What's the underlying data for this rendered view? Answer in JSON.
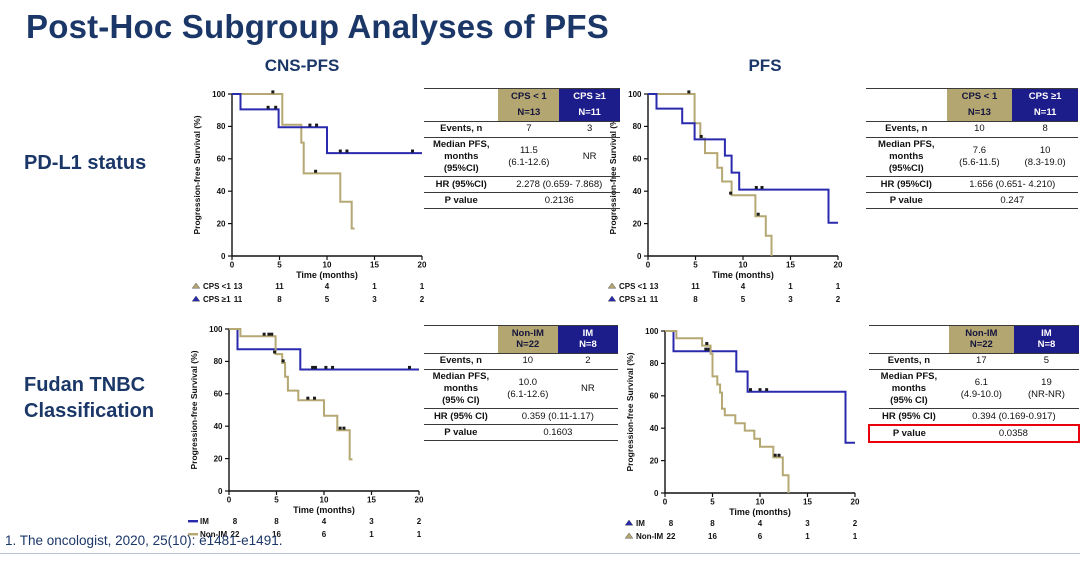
{
  "slide": {
    "title": "Post-Hoc Subgroup Analyses of PFS",
    "column_headers": [
      "CNS-PFS",
      "PFS"
    ],
    "row_labels": [
      "PD-L1 status",
      "Fudan TNBC Classification"
    ],
    "footer": "1. The oncologist, 2020, 25(10): e1481-e1491."
  },
  "colors": {
    "navy_text": "#1b3768",
    "navy_line": "#2a2aae",
    "tan_line": "#b5a873",
    "navy_header_bg": "#1c1c8a",
    "tan_header_bg": "#b3a671",
    "highlight_red": "#e8000d",
    "censor_mark": "#1a1a1a"
  },
  "chart_data": [
    {
      "type": "line",
      "group": "PD-L1 status",
      "endpoint": "CNS-PFS",
      "xlabel": "Time (months)",
      "ylabel": "Progression-free Survival (%)",
      "xlim": [
        0,
        20
      ],
      "ylim": [
        0,
        100
      ],
      "xticks": [
        0,
        5,
        10,
        15,
        20
      ],
      "yticks": [
        0,
        20,
        40,
        60,
        80,
        100
      ],
      "series": [
        {
          "name": "CPS <1",
          "color": "#b5a873",
          "marker": "triangle",
          "steps": [
            [
              0,
              100
            ],
            [
              5.3,
              100
            ],
            [
              5.3,
              81
            ],
            [
              7.3,
              81
            ],
            [
              7.3,
              70
            ],
            [
              7.55,
              70
            ],
            [
              7.55,
              51
            ],
            [
              11.4,
              51
            ],
            [
              11.4,
              33.5
            ],
            [
              12.6,
              33.5
            ],
            [
              12.6,
              17
            ],
            [
              12.9,
              17
            ]
          ],
          "censors": [
            [
              4.3,
              100
            ],
            [
              8.8,
              51
            ]
          ],
          "at_risk": [
            13,
            11,
            4,
            1,
            1
          ]
        },
        {
          "name": "CPS ≥1",
          "color": "#2a2aae",
          "marker": "triangle",
          "steps": [
            [
              0,
              100
            ],
            [
              0.9,
              100
            ],
            [
              0.9,
              90.5
            ],
            [
              4.9,
              90.5
            ],
            [
              4.9,
              79.5
            ],
            [
              10,
              79.5
            ],
            [
              10,
              63.5
            ],
            [
              20,
              63.5
            ]
          ],
          "censors": [
            [
              3.8,
              90.5
            ],
            [
              4.6,
              90.5
            ],
            [
              8.2,
              79.5
            ],
            [
              8.9,
              79.5
            ],
            [
              11.4,
              63.5
            ],
            [
              12.1,
              63.5
            ],
            [
              19,
              63.5
            ]
          ],
          "at_risk": [
            11,
            8,
            5,
            3,
            2
          ]
        }
      ],
      "table": {
        "headers": [
          {
            "title": "CPS < 1",
            "n": "N=13",
            "bg": "tan",
            "gap": true
          },
          {
            "title": "CPS ≥1",
            "n": "N=11",
            "bg": "navy",
            "gap": true
          }
        ],
        "rows": [
          {
            "label": "Events, n",
            "values": [
              "7",
              "3"
            ]
          },
          {
            "label": "Median PFS,\nmonths\n(95%CI)",
            "values": [
              "11.5\n(6.1-12.6)",
              "NR"
            ]
          },
          {
            "label": "HR (95%CI)",
            "span": "2.278 (0.659- 7.868)"
          },
          {
            "label": "P value",
            "span": "0.2136"
          }
        ]
      }
    },
    {
      "type": "line",
      "group": "PD-L1 status",
      "endpoint": "PFS",
      "xlabel": "Time (months)",
      "ylabel": "Progression-free Survival (%)",
      "xlim": [
        0,
        20
      ],
      "ylim": [
        0,
        100
      ],
      "xticks": [
        0,
        5,
        10,
        15,
        20
      ],
      "yticks": [
        0,
        20,
        40,
        60,
        80,
        100
      ],
      "series": [
        {
          "name": "CPS <1",
          "color": "#b5a873",
          "marker": "triangle",
          "steps": [
            [
              0,
              100
            ],
            [
              4.9,
              100
            ],
            [
              4.9,
              82
            ],
            [
              5.5,
              82
            ],
            [
              5.5,
              72.5
            ],
            [
              6,
              72.5
            ],
            [
              6,
              63.5
            ],
            [
              7.3,
              63.5
            ],
            [
              7.3,
              54.5
            ],
            [
              7.8,
              54.5
            ],
            [
              7.8,
              46
            ],
            [
              8.8,
              46
            ],
            [
              8.8,
              37.5
            ],
            [
              11.3,
              37.5
            ],
            [
              11.3,
              24.5
            ],
            [
              12.4,
              24.5
            ],
            [
              12.4,
              12.5
            ],
            [
              13,
              12.5
            ],
            [
              13,
              0
            ]
          ],
          "censors": [
            [
              4.3,
              100
            ],
            [
              5.6,
              72.5
            ],
            [
              8.7,
              37.5
            ],
            [
              11.6,
              24.5
            ]
          ],
          "at_risk": [
            13,
            11,
            4,
            1,
            1
          ]
        },
        {
          "name": "CPS ≥1",
          "color": "#2a2aae",
          "marker": "triangle",
          "steps": [
            [
              0,
              100
            ],
            [
              0.9,
              100
            ],
            [
              0.9,
              91
            ],
            [
              3.6,
              91
            ],
            [
              3.6,
              82
            ],
            [
              4.9,
              82
            ],
            [
              4.9,
              72
            ],
            [
              8.1,
              72
            ],
            [
              8.1,
              62
            ],
            [
              8.8,
              62
            ],
            [
              8.8,
              51.5
            ],
            [
              9.6,
              51.5
            ],
            [
              9.6,
              41
            ],
            [
              19,
              41
            ],
            [
              19,
              20.5
            ],
            [
              20,
              20.5
            ]
          ],
          "censors": [
            [
              11.4,
              41
            ],
            [
              12,
              41
            ]
          ],
          "at_risk": [
            11,
            8,
            5,
            3,
            2
          ]
        }
      ],
      "table": {
        "headers": [
          {
            "title": "CPS < 1",
            "n": "N=13",
            "bg": "tan",
            "gap": true
          },
          {
            "title": "CPS ≥1",
            "n": "N=11",
            "bg": "navy",
            "gap": true
          }
        ],
        "rows": [
          {
            "label": "Events, n",
            "values": [
              "10",
              "8"
            ]
          },
          {
            "label": "Median PFS,\nmonths\n(95%CI)",
            "values": [
              "7.6\n(5.6-11.5)",
              "10\n(8.3-19.0)"
            ]
          },
          {
            "label": "HR (95%CI)",
            "span": "1.656 (0.651- 4.210)"
          },
          {
            "label": "P value",
            "span": "0.247"
          }
        ]
      }
    },
    {
      "type": "line",
      "group": "Fudan TNBC Classification",
      "endpoint": "CNS-PFS",
      "xlabel": "Time (months)",
      "ylabel": "Progression-free Survival (%)",
      "xlim": [
        0,
        20
      ],
      "ylim": [
        0,
        100
      ],
      "xticks": [
        0,
        5,
        10,
        15,
        20
      ],
      "yticks": [
        0,
        20,
        40,
        60,
        80,
        100
      ],
      "series": [
        {
          "name": "IM",
          "color": "#2a2aae",
          "marker": "line",
          "steps": [
            [
              0,
              100
            ],
            [
              0.9,
              100
            ],
            [
              0.9,
              87.5
            ],
            [
              7.5,
              87.5
            ],
            [
              7.5,
              75
            ],
            [
              20,
              75
            ]
          ],
          "censors": [
            [
              8.8,
              75
            ],
            [
              9.1,
              75
            ],
            [
              10.2,
              75
            ],
            [
              10.9,
              75
            ],
            [
              19,
              75
            ]
          ],
          "at_risk": [
            8,
            8,
            4,
            3,
            2
          ]
        },
        {
          "name": "Non-IM",
          "color": "#b5a873",
          "marker": "line",
          "steps": [
            [
              0,
              100
            ],
            [
              1.2,
              100
            ],
            [
              1.2,
              95.5
            ],
            [
              4.9,
              95.5
            ],
            [
              4.9,
              84.5
            ],
            [
              5.6,
              84.5
            ],
            [
              5.6,
              79
            ],
            [
              5.9,
              79
            ],
            [
              5.9,
              70.5
            ],
            [
              6.2,
              70.5
            ],
            [
              6.2,
              62
            ],
            [
              7.3,
              62
            ],
            [
              7.3,
              56
            ],
            [
              10,
              56
            ],
            [
              10,
              46.5
            ],
            [
              11.4,
              46.5
            ],
            [
              11.4,
              37.5
            ],
            [
              12.7,
              37.5
            ],
            [
              12.7,
              19.5
            ],
            [
              13,
              19.5
            ]
          ],
          "censors": [
            [
              3.7,
              95.5
            ],
            [
              4.2,
              95.5
            ],
            [
              4.5,
              95.5
            ],
            [
              4.8,
              84.5
            ],
            [
              5.7,
              79
            ],
            [
              8.3,
              56
            ],
            [
              9,
              56
            ],
            [
              11.7,
              37.5
            ],
            [
              12.1,
              37.5
            ]
          ],
          "at_risk": [
            22,
            16,
            6,
            1,
            1
          ]
        }
      ],
      "table": {
        "headers": [
          {
            "title": "Non-IM",
            "n": "N=22",
            "bg": "tan",
            "gap": false
          },
          {
            "title": "IM",
            "n": "N=8",
            "bg": "navy",
            "gap": false
          }
        ],
        "rows": [
          {
            "label": "Events, n",
            "values": [
              "10",
              "2"
            ]
          },
          {
            "label": "Median PFS,\nmonths\n(95% CI)",
            "values": [
              "10.0\n(6.1-12.6)",
              "NR"
            ]
          },
          {
            "label": "HR (95% CI)",
            "span": "0.359 (0.11-1.17)"
          },
          {
            "label": "P value",
            "span": "0.1603"
          }
        ]
      }
    },
    {
      "type": "line",
      "group": "Fudan TNBC Classification",
      "endpoint": "PFS",
      "xlabel": "Time (months)",
      "ylabel": "Progression-free Survival (%)",
      "xlim": [
        0,
        20
      ],
      "ylim": [
        0,
        100
      ],
      "xticks": [
        0,
        5,
        10,
        15,
        20
      ],
      "yticks": [
        0,
        20,
        40,
        60,
        80,
        100
      ],
      "series": [
        {
          "name": "IM",
          "color": "#2a2aae",
          "marker": "triangle",
          "steps": [
            [
              0,
              100
            ],
            [
              0.9,
              100
            ],
            [
              0.9,
              87.5
            ],
            [
              7.5,
              87.5
            ],
            [
              7.5,
              75
            ],
            [
              8.7,
              75
            ],
            [
              8.7,
              62.5
            ],
            [
              19,
              62.5
            ],
            [
              19,
              31
            ],
            [
              20,
              31
            ]
          ],
          "censors": [
            [
              4.3,
              87.5
            ],
            [
              4.6,
              87.5
            ],
            [
              9,
              62.5
            ],
            [
              10,
              62.5
            ],
            [
              10.7,
              62.5
            ]
          ],
          "at_risk": [
            8,
            8,
            4,
            3,
            2
          ]
        },
        {
          "name": "Non-IM",
          "color": "#b5a873",
          "marker": "triangle",
          "steps": [
            [
              0,
              100
            ],
            [
              1.2,
              100
            ],
            [
              1.2,
              95.5
            ],
            [
              3.9,
              95.5
            ],
            [
              3.9,
              91
            ],
            [
              4.8,
              91
            ],
            [
              4.8,
              86
            ],
            [
              5,
              86
            ],
            [
              5,
              72
            ],
            [
              5.5,
              72
            ],
            [
              5.5,
              67
            ],
            [
              5.8,
              67
            ],
            [
              5.8,
              62
            ],
            [
              6,
              62
            ],
            [
              6,
              52
            ],
            [
              6.3,
              52
            ],
            [
              6.3,
              48
            ],
            [
              7.4,
              48
            ],
            [
              7.4,
              43
            ],
            [
              8.4,
              43
            ],
            [
              8.4,
              38.5
            ],
            [
              9.4,
              38.5
            ],
            [
              9.4,
              33.5
            ],
            [
              10,
              33.5
            ],
            [
              10,
              28.5
            ],
            [
              11.4,
              28.5
            ],
            [
              11.4,
              22
            ],
            [
              12.4,
              22
            ],
            [
              12.4,
              11
            ],
            [
              13,
              11
            ],
            [
              13,
              0
            ]
          ],
          "censors": [
            [
              4.4,
              91
            ],
            [
              11.6,
              22
            ],
            [
              12,
              22
            ]
          ],
          "at_risk": [
            22,
            16,
            6,
            1,
            1
          ]
        }
      ],
      "table": {
        "headers": [
          {
            "title": "Non-IM",
            "n": "N=22",
            "bg": "tan",
            "gap": false
          },
          {
            "title": "IM",
            "n": "N=8",
            "bg": "navy",
            "gap": false
          }
        ],
        "rows": [
          {
            "label": "Events, n",
            "values": [
              "17",
              "5"
            ]
          },
          {
            "label": "Median PFS,\nmonths\n(95% CI)",
            "values": [
              "6.1\n(4.9-10.0)",
              "19\n(NR-NR)"
            ]
          },
          {
            "label": "HR (95% CI)",
            "span": "0.394 (0.169-0.917)"
          },
          {
            "label": "P value",
            "span": "0.0358",
            "highlight": true
          }
        ]
      }
    }
  ]
}
